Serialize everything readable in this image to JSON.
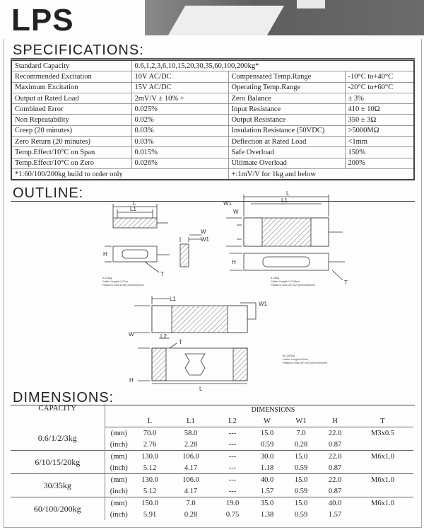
{
  "logo": "LPS",
  "sections": {
    "specifications": "SPECIFICATIONS:",
    "outline": "OUTLINE:",
    "dimensions": "DIMENSIONS:"
  },
  "specs": {
    "standard_capacity": {
      "label": "Standard Capacity",
      "value": "0.6,1,2,3,6,10,15,20,30,35,60,100,200kg*"
    },
    "rows": [
      {
        "l1": "Recommended Excitation",
        "v1": "10V AC/DC",
        "l2": "Compensated Temp.Range",
        "v2": "-10°C to+40°C"
      },
      {
        "l1": "Maximum Excitation",
        "v1": "15V AC/DC",
        "l2": "Operating Temp.Range",
        "v2": "-20°C to+60°C"
      },
      {
        "l1": "Output at Rated Load",
        "v1": "2mV/V ± 10% +",
        "l2": "Zero Balance",
        "v2": "± 3%"
      },
      {
        "l1": "Combined Error",
        "v1": "0.025%",
        "l2": "Input Resistance",
        "v2": "410 ± 10Ω"
      },
      {
        "l1": "Non Repeatability",
        "v1": "0.02%",
        "l2": "Output Resistance",
        "v2": "350 ± 3Ω"
      },
      {
        "l1": "Creep (20 minutes)",
        "v1": "0.03%",
        "l2": "Insulation Resistance (50VDC)",
        "v2": ">5000MΩ"
      },
      {
        "l1": "Zero Return (20 minutes)",
        "v1": "0.03%",
        "l2": "Deflection at Rated Load",
        "v2": "<1mm"
      },
      {
        "l1": "Temp.Effect/10°C on Span",
        "v1": "0.015%",
        "l2": "Safe Overload",
        "v2": "150%"
      },
      {
        "l1": "Temp.Effect/10°C on Zero",
        "v1": "0.026%",
        "l2": "Ultimate Overload",
        "v2": "200%"
      }
    ],
    "footnote_left": "*1:60/100/200kg build to order only",
    "footnote_right": "+:1mV/V for 1kg and below"
  },
  "outline": {
    "labels": {
      "L": "L",
      "L1": "L1",
      "L2": "L2",
      "W": "W",
      "W1": "W1",
      "H": "H",
      "T": "T"
    },
    "notes": [
      [
        "0.6-3kg",
        "Cable Length:1.00m",
        "Platform Size:8\"x8\"(200x200)mm"
      ],
      [
        "6-35kg",
        "Cable Length:1.2/40cm",
        "Platform Size:12\"x12\"(300x300)mm"
      ],
      [
        "60-200kg",
        "Cable Length:0.60m",
        "Platform Size:16\"x16\"(400x400)mm"
      ]
    ]
  },
  "dimensions": {
    "capacity_header": "CAPACITY",
    "dimensions_header": "DIMENSIONS",
    "columns": [
      "L",
      "L1",
      "L2",
      "W",
      "W1",
      "H",
      "T"
    ],
    "unit_mm": "(mm)",
    "unit_inch": "(inch)",
    "rows": [
      {
        "capacity": "0.6/1/2/3kg",
        "mm": [
          "70.0",
          "58.0",
          "---",
          "15.0",
          "7.0",
          "22.0",
          "M3x0.5"
        ],
        "inch": [
          "2.76",
          "2.28",
          "---",
          "0.59",
          "0.28",
          "0.87",
          ""
        ]
      },
      {
        "capacity": "6/10/15/20kg",
        "mm": [
          "130.0",
          "106.0",
          "---",
          "30.0",
          "15.0",
          "22.0",
          "M6x1.0"
        ],
        "inch": [
          "5.12",
          "4.17",
          "---",
          "1.18",
          "0.59",
          "0.87",
          ""
        ]
      },
      {
        "capacity": "30/35kg",
        "mm": [
          "130.0",
          "106.0",
          "---",
          "40.0",
          "15.0",
          "22.0",
          "M6x1.0"
        ],
        "inch": [
          "5.12",
          "4.17",
          "---",
          "1.57",
          "0.59",
          "0.87",
          ""
        ]
      },
      {
        "capacity": "60/100/200kg",
        "mm": [
          "150.0",
          "7.0",
          "19.0",
          "35.0",
          "15.0",
          "40.0",
          "M6x1.0"
        ],
        "inch": [
          "5.91",
          "0.28",
          "0.75",
          "1.38",
          "0.59",
          "1.57",
          ""
        ]
      }
    ]
  }
}
